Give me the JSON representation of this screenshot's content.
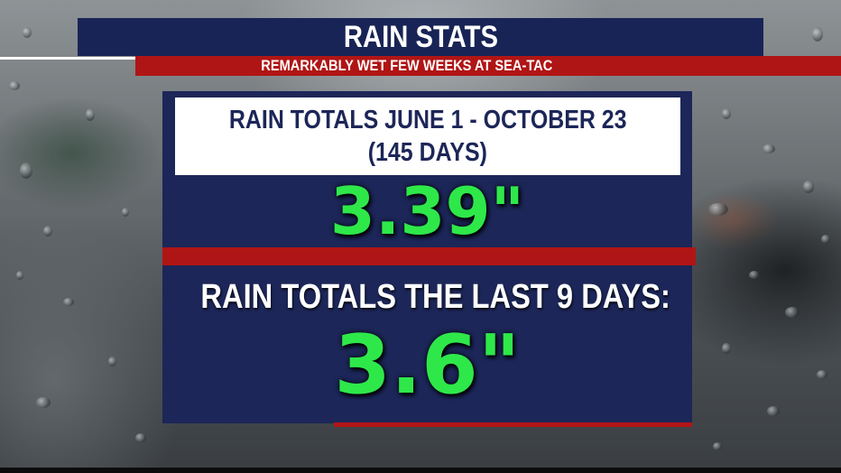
{
  "header": {
    "title": "RAIN STATS",
    "subtitle": "REMARKABLY WET FEW WEEKS AT SEA-TAC"
  },
  "stat_1": {
    "label_line_1": "RAIN TOTALS JUNE 1 - OCTOBER 23",
    "label_line_2": "(145 DAYS)",
    "value": "3.39\""
  },
  "stat_2": {
    "label": "RAIN TOTALS THE LAST 9 DAYS:",
    "value": "3.6\""
  },
  "colors": {
    "navy": "#1c2658",
    "red": "#b01515",
    "green": "#2ee84a",
    "white": "#ffffff"
  }
}
